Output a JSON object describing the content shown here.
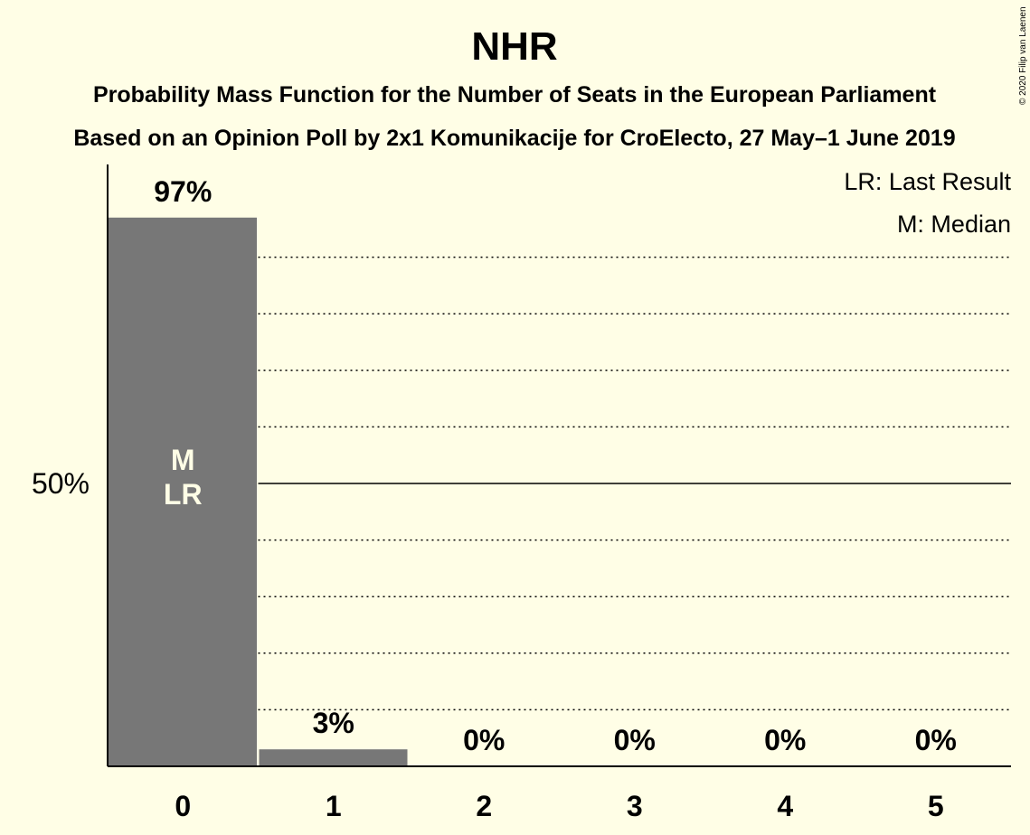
{
  "chart_data": {
    "type": "bar",
    "title": "NHR",
    "subtitle_lines": [
      "Probability Mass Function for the Number of Seats in the European Parliament",
      "Based on an Opinion Poll by 2x1 Komunikacije for CroElecto, 27 May–1 June 2019"
    ],
    "copyright": "© 2020 Filip van Laenen",
    "categories": [
      "0",
      "1",
      "2",
      "3",
      "4",
      "5"
    ],
    "values": [
      97,
      3,
      0,
      0,
      0,
      0
    ],
    "value_labels": [
      "97%",
      "3%",
      "0%",
      "0%",
      "0%",
      "0%"
    ],
    "ylim": [
      0,
      100
    ],
    "y_ticks": [
      {
        "value": 50,
        "label": "50%"
      }
    ],
    "gridlines_dotted": [
      10,
      20,
      30,
      40,
      60,
      70,
      80,
      90
    ],
    "gridline_solid": 50,
    "bar_color": "#777777",
    "inbar_label_color": "#FFFEE6",
    "inbar_markers": {
      "category_index": 0,
      "lines": [
        "M",
        "LR"
      ]
    },
    "legend": [
      "LR: Last Result",
      "M: Median"
    ],
    "legend_position": "top-right"
  }
}
